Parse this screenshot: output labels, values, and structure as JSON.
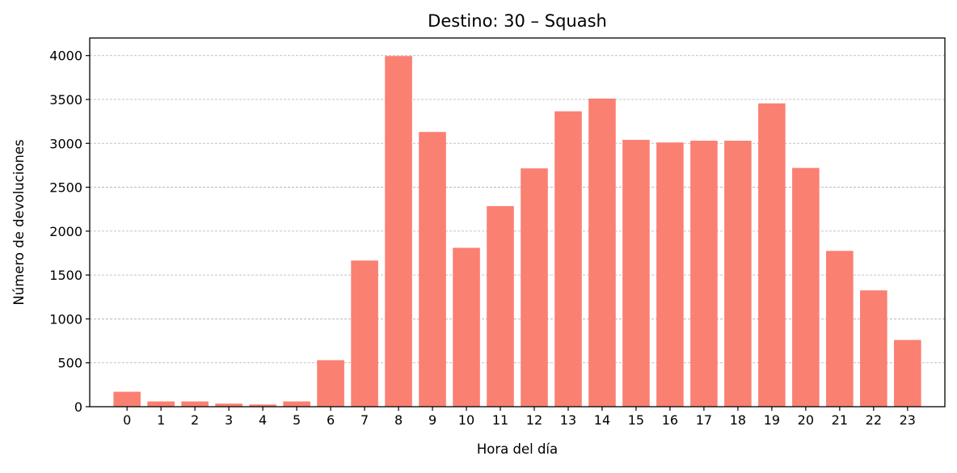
{
  "chart_data": {
    "type": "bar",
    "title": "Destino: 30 – Squash",
    "xlabel": "Hora del día",
    "ylabel": "Número de devoluciones",
    "categories": [
      "0",
      "1",
      "2",
      "3",
      "4",
      "5",
      "6",
      "7",
      "8",
      "9",
      "10",
      "11",
      "12",
      "13",
      "14",
      "15",
      "16",
      "17",
      "18",
      "19",
      "20",
      "21",
      "22",
      "23"
    ],
    "values": [
      170,
      60,
      60,
      35,
      25,
      60,
      530,
      1665,
      3995,
      3130,
      1810,
      2285,
      2715,
      3365,
      3510,
      3040,
      3010,
      3030,
      3030,
      3455,
      2720,
      1775,
      1325,
      760
    ],
    "ylim": [
      0,
      4200
    ],
    "yticks": [
      0,
      500,
      1000,
      1500,
      2000,
      2500,
      3000,
      3500,
      4000
    ],
    "grid": "y-dashed",
    "colors": {
      "bar": "#fa8072",
      "grid": "#b0b0b0",
      "axis": "#000000"
    }
  }
}
